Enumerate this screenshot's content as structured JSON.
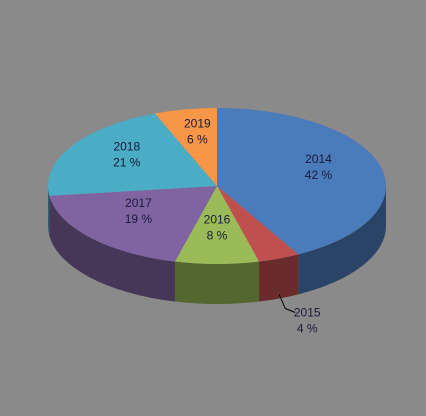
{
  "chart_data": {
    "type": "pie",
    "categories": [
      "2014",
      "2015",
      "2016",
      "2017",
      "2018",
      "2019"
    ],
    "values": [
      42,
      4,
      8,
      19,
      21,
      6
    ],
    "value_labels": [
      "42 %",
      "4 %",
      "8 %",
      "19 %",
      "21 %",
      "6 %"
    ],
    "colors": [
      "#4a7bbb",
      "#c0504d",
      "#9bbb59",
      "#8064a2",
      "#4bacc6",
      "#f79646"
    ]
  }
}
